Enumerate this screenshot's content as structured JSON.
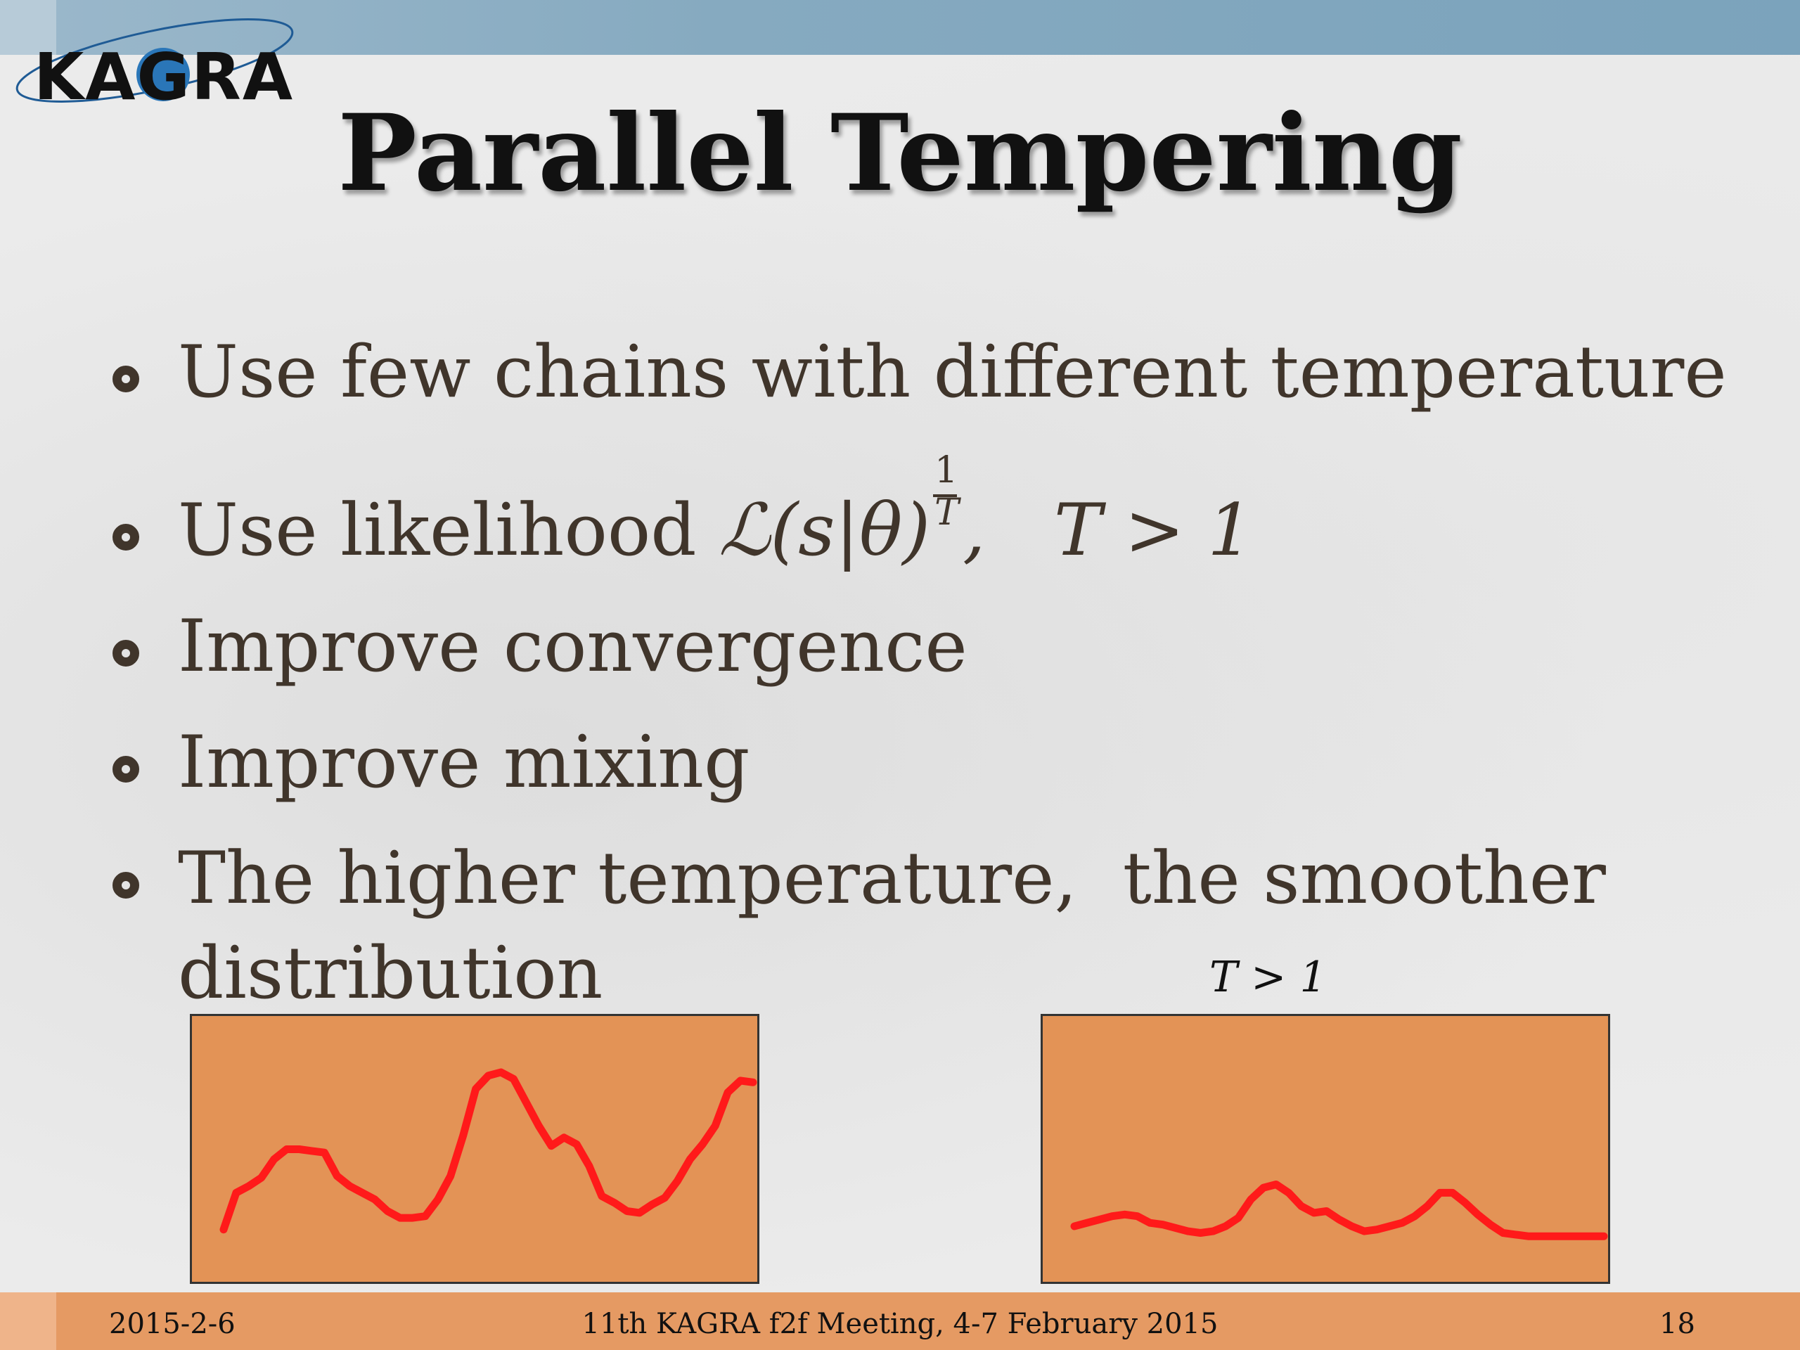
{
  "header": {
    "logo_text": "KAGRA",
    "title": "Parallel Tempering"
  },
  "bullets": [
    {
      "text": "Use few chains with different temperature"
    },
    {
      "text": "Use likelihood",
      "formula": {
        "base": "ℒ(s|θ)",
        "exponent_num": "1",
        "exponent_den": "T",
        "tail": ",   T > 1"
      }
    },
    {
      "text": "Improve convergence"
    },
    {
      "text": "Improve mixing"
    },
    {
      "text": "The higher temperature,  the smoother",
      "continuation": "distribution"
    }
  ],
  "charts": {
    "right_label": "T > 1"
  },
  "chart_data": [
    {
      "type": "line",
      "title": "",
      "xlabel": "",
      "ylabel": "",
      "x": [
        0,
        1,
        2,
        3,
        4,
        5,
        6,
        7,
        8,
        9,
        10,
        11,
        12,
        13,
        14,
        15,
        16,
        17,
        18,
        19,
        20,
        21,
        22,
        23,
        24,
        25,
        26,
        27,
        28,
        29,
        30,
        31,
        32,
        33,
        34,
        35,
        36,
        37,
        38,
        39,
        40,
        41,
        42
      ],
      "values": [
        0.06,
        0.28,
        0.32,
        0.37,
        0.48,
        0.54,
        0.54,
        0.53,
        0.52,
        0.38,
        0.32,
        0.28,
        0.24,
        0.17,
        0.13,
        0.13,
        0.14,
        0.24,
        0.38,
        0.62,
        0.9,
        0.98,
        1.0,
        0.96,
        0.82,
        0.68,
        0.56,
        0.61,
        0.57,
        0.44,
        0.26,
        0.22,
        0.17,
        0.16,
        0.21,
        0.25,
        0.35,
        0.48,
        0.57,
        0.68,
        0.88,
        0.95,
        0.94
      ],
      "color": "#ff1a1a",
      "ylim": [
        0,
        1
      ]
    },
    {
      "type": "line",
      "title": "T > 1",
      "xlabel": "",
      "ylabel": "",
      "x": [
        0,
        1,
        2,
        3,
        4,
        5,
        6,
        7,
        8,
        9,
        10,
        11,
        12,
        13,
        14,
        15,
        16,
        17,
        18,
        19,
        20,
        21,
        22,
        23,
        24,
        25,
        26,
        27,
        28,
        29,
        30,
        31,
        32,
        33,
        34,
        35,
        36,
        37,
        38,
        39,
        40,
        41,
        42
      ],
      "values": [
        0.08,
        0.1,
        0.12,
        0.14,
        0.15,
        0.14,
        0.1,
        0.09,
        0.07,
        0.05,
        0.04,
        0.05,
        0.08,
        0.13,
        0.24,
        0.31,
        0.33,
        0.28,
        0.2,
        0.16,
        0.17,
        0.12,
        0.08,
        0.05,
        0.06,
        0.08,
        0.1,
        0.14,
        0.2,
        0.28,
        0.28,
        0.22,
        0.15,
        0.09,
        0.04,
        0.03,
        0.02,
        0.02,
        0.02,
        0.02,
        0.02,
        0.02,
        0.02
      ],
      "color": "#ff1a1a",
      "ylim": [
        0,
        1
      ]
    }
  ],
  "footer": {
    "date": "2015-2-6",
    "meeting": "11th KAGRA f2f Meeting, 4-7 February 2015",
    "page_number": "18"
  }
}
